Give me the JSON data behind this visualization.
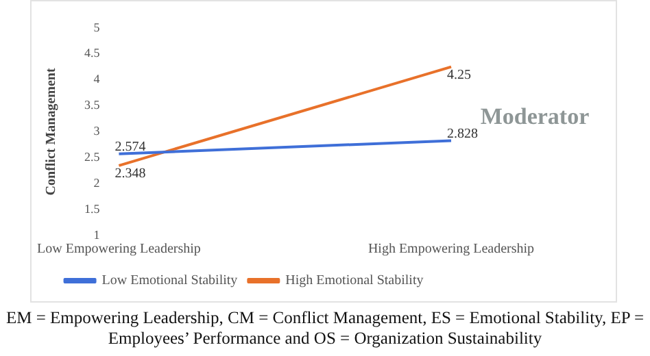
{
  "chart_data": {
    "type": "line",
    "ylabel": "Conflict Management",
    "categories": [
      "Low Empowering Leadership",
      "High Empowering Leadership"
    ],
    "series": [
      {
        "name": "Low Emotional Stability",
        "color": "#3f6fd8",
        "values": [
          2.574,
          2.828
        ]
      },
      {
        "name": "High Emotional Stability",
        "color": "#e8712a",
        "values": [
          2.348,
          4.25
        ]
      }
    ],
    "ylim": [
      1,
      5
    ],
    "yticks": [
      1,
      1.5,
      2,
      2.5,
      3,
      3.5,
      4,
      4.5,
      5
    ],
    "grid": false,
    "legend": "bottom",
    "marker": "none",
    "line_style": "solid",
    "data_labels": true,
    "annotations": [
      "Moderator",
      "EM = Empowering Leadership, CM = Conflict Management, ES = Emotional Stability, EP = Employees’ Performance and OS = Organization Sustainability"
    ]
  }
}
